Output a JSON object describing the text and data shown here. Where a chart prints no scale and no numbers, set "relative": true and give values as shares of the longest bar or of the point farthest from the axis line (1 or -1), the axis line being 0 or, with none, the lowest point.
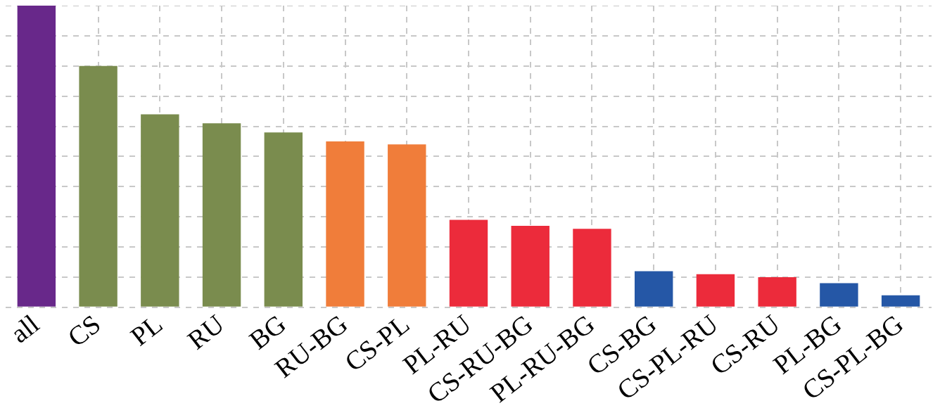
{
  "chart_data": {
    "type": "bar",
    "relative": true,
    "grid": true,
    "categories": [
      "all",
      "CS",
      "PL",
      "RU",
      "BG",
      "RU-BG",
      "CS-PL",
      "PL-RU",
      "CS-RU-BG",
      "PL-RU-BG",
      "CS-BG",
      "CS-PL-RU",
      "CS-RU",
      "PL-BG",
      "CS-PL-BG"
    ],
    "values": [
      1,
      0.8,
      0.64,
      0.61,
      0.58,
      0.55,
      0.54,
      0.29,
      0.27,
      0.26,
      0.12,
      0.11,
      0.1,
      0.08,
      0.04
    ],
    "colors": [
      "#68288a",
      "#7a8c4e",
      "#7a8c4e",
      "#7a8c4e",
      "#7a8c4e",
      "#f07d3a",
      "#f07d3a",
      "#ec2b3b",
      "#ec2b3b",
      "#ec2b3b",
      "#2557a6",
      "#ec2b3b",
      "#ec2b3b",
      "#2557a6",
      "#2557a6"
    ]
  }
}
